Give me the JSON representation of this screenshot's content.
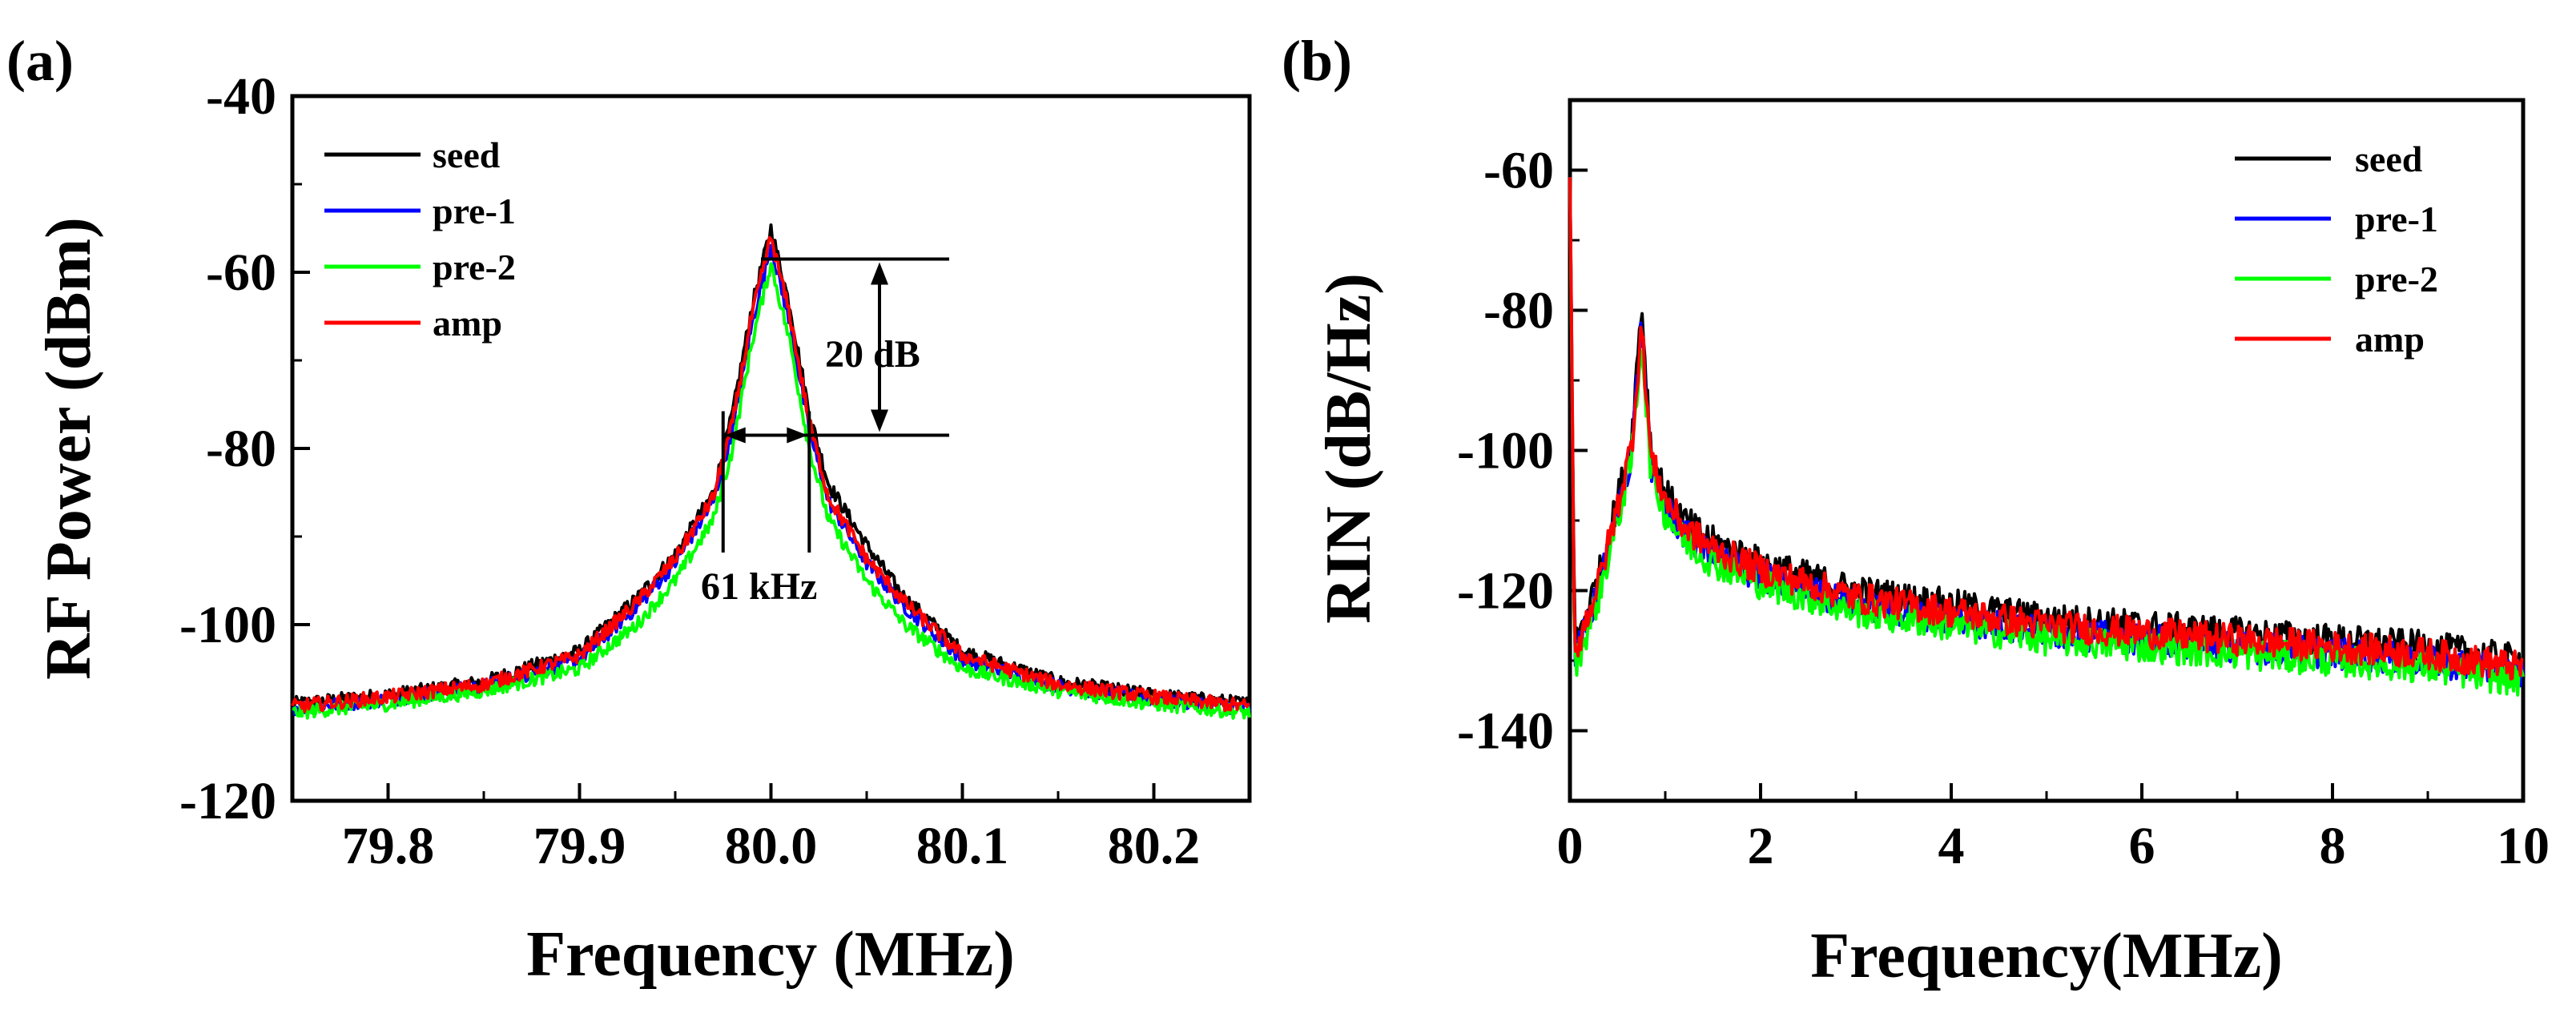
{
  "chart_data": [
    {
      "type": "line",
      "panel_label": "(a)",
      "xlabel": "Frequency (MHz)",
      "ylabel": "RF Power (dBm)",
      "xlim": [
        79.75,
        80.25
      ],
      "ylim": [
        -120,
        -40
      ],
      "x_ticks": [
        79.8,
        79.9,
        80.0,
        80.1,
        80.2
      ],
      "x_tick_labels": [
        "79.8",
        "79.9",
        "80.0",
        "80.1",
        "80.2"
      ],
      "y_ticks": [
        -120,
        -100,
        -80,
        -60,
        -40
      ],
      "y_tick_labels": [
        "-120",
        "-100",
        "-80",
        "-60",
        "-40"
      ],
      "legend_position": "top-left",
      "series": [
        {
          "name": "seed",
          "color": "#000000",
          "x": [
            79.75,
            79.8,
            79.85,
            79.9,
            79.93,
            79.95,
            79.97,
            79.98,
            79.99,
            80.0,
            80.01,
            80.02,
            80.03,
            80.05,
            80.07,
            80.1,
            80.15,
            80.2,
            80.25
          ],
          "values": [
            -109,
            -108,
            -106.5,
            -103,
            -97,
            -92,
            -85,
            -76,
            -64,
            -55,
            -64,
            -76,
            -84,
            -91,
            -97,
            -103,
            -106.5,
            -108,
            -109
          ]
        },
        {
          "name": "pre-1",
          "color": "#0000ff",
          "x": [
            79.75,
            79.8,
            79.85,
            79.9,
            79.93,
            79.95,
            79.97,
            79.98,
            79.99,
            80.0,
            80.01,
            80.02,
            80.03,
            80.05,
            80.07,
            80.1,
            80.15,
            80.2,
            80.25
          ],
          "values": [
            -109.5,
            -108.5,
            -107,
            -104,
            -98,
            -93,
            -86,
            -78,
            -66,
            -57,
            -66,
            -78,
            -86,
            -93,
            -98,
            -104,
            -107,
            -108.5,
            -109.5
          ]
        },
        {
          "name": "pre-2",
          "color": "#00ff00",
          "x": [
            79.75,
            79.8,
            79.85,
            79.9,
            79.93,
            79.95,
            79.97,
            79.98,
            79.99,
            80.0,
            80.01,
            80.02,
            80.03,
            80.05,
            80.07,
            80.1,
            80.15,
            80.2,
            80.25
          ],
          "values": [
            -110,
            -109,
            -107.5,
            -105,
            -100,
            -95,
            -88,
            -80,
            -68,
            -59,
            -68,
            -80,
            -88,
            -95,
            -100,
            -105,
            -107.5,
            -109,
            -110
          ]
        },
        {
          "name": "amp",
          "color": "#ff0000",
          "x": [
            79.75,
            79.8,
            79.85,
            79.9,
            79.93,
            79.95,
            79.97,
            79.98,
            79.99,
            80.0,
            80.01,
            80.02,
            80.03,
            80.05,
            80.07,
            80.1,
            80.15,
            80.2,
            80.25
          ],
          "values": [
            -109.3,
            -108.2,
            -106.8,
            -103.5,
            -97.5,
            -92.5,
            -85.5,
            -77,
            -65,
            -56,
            -65,
            -77,
            -85.5,
            -92.5,
            -97.5,
            -103.5,
            -106.8,
            -108.2,
            -109.3
          ]
        }
      ],
      "annotations": {
        "peak_level": -58.5,
        "lower_level": -78.5,
        "bracket_x": 80.04,
        "label_20db": "20 dB",
        "left_x": 79.975,
        "right_x": 80.02,
        "label_61khz": "61 kHz"
      }
    },
    {
      "type": "line",
      "panel_label": "(b)",
      "xlabel": "Frequency(MHz)",
      "ylabel": "RIN (dB/Hz)",
      "xlim": [
        0,
        10
      ],
      "ylim": [
        -150,
        -50
      ],
      "x_ticks": [
        0,
        2,
        4,
        6,
        8,
        10
      ],
      "x_tick_labels": [
        "0",
        "2",
        "4",
        "6",
        "8",
        "10"
      ],
      "y_ticks": [
        -140,
        -120,
        -100,
        -80,
        -60
      ],
      "y_tick_labels": [
        "-140",
        "-120",
        "-100",
        "-80",
        "-60"
      ],
      "legend_position": "top-right",
      "series": [
        {
          "name": "seed",
          "color": "#000000",
          "x": [
            0,
            0.05,
            0.1,
            0.3,
            0.5,
            0.65,
            0.75,
            0.85,
            1.0,
            1.2,
            1.5,
            2.0,
            2.5,
            3.0,
            4.0,
            5.0,
            6.0,
            7.0,
            8.0,
            9.0,
            10.0
          ],
          "values": [
            -61,
            -128,
            -126,
            -118,
            -107,
            -98,
            -79,
            -100,
            -106,
            -110,
            -113,
            -116,
            -118,
            -120,
            -122,
            -124,
            -125,
            -126,
            -127,
            -128,
            -130
          ]
        },
        {
          "name": "pre-1",
          "color": "#0000ff",
          "x": [
            0,
            0.05,
            0.1,
            0.3,
            0.5,
            0.65,
            0.75,
            0.85,
            1.0,
            1.2,
            1.5,
            2.0,
            2.5,
            3.0,
            4.0,
            5.0,
            6.0,
            7.0,
            8.0,
            9.0,
            10.0
          ],
          "values": [
            -61,
            -130,
            -128,
            -120,
            -109,
            -100,
            -82,
            -102,
            -108,
            -112,
            -115,
            -118,
            -120,
            -122,
            -124,
            -126,
            -127,
            -128,
            -129,
            -130,
            -132
          ]
        },
        {
          "name": "pre-2",
          "color": "#00ff00",
          "x": [
            0,
            0.05,
            0.1,
            0.3,
            0.5,
            0.65,
            0.75,
            0.85,
            1.0,
            1.2,
            1.5,
            2.0,
            2.5,
            3.0,
            4.0,
            5.0,
            6.0,
            7.0,
            8.0,
            9.0,
            10.0
          ],
          "values": [
            -61,
            -131,
            -129,
            -121,
            -110,
            -101,
            -84,
            -103,
            -109,
            -113,
            -116,
            -119,
            -121,
            -123,
            -125,
            -127,
            -128,
            -129,
            -130,
            -131,
            -133
          ]
        },
        {
          "name": "amp",
          "color": "#ff0000",
          "x": [
            0,
            0.05,
            0.1,
            0.3,
            0.5,
            0.65,
            0.75,
            0.85,
            1.0,
            1.2,
            1.5,
            2.0,
            2.5,
            3.0,
            4.0,
            5.0,
            6.0,
            7.0,
            8.0,
            9.0,
            10.0
          ],
          "values": [
            -61,
            -129,
            -127,
            -119,
            -108,
            -99,
            -82,
            -101,
            -107,
            -111,
            -114,
            -117,
            -119,
            -121,
            -123,
            -125,
            -126,
            -127,
            -128,
            -129,
            -131
          ]
        }
      ]
    }
  ]
}
